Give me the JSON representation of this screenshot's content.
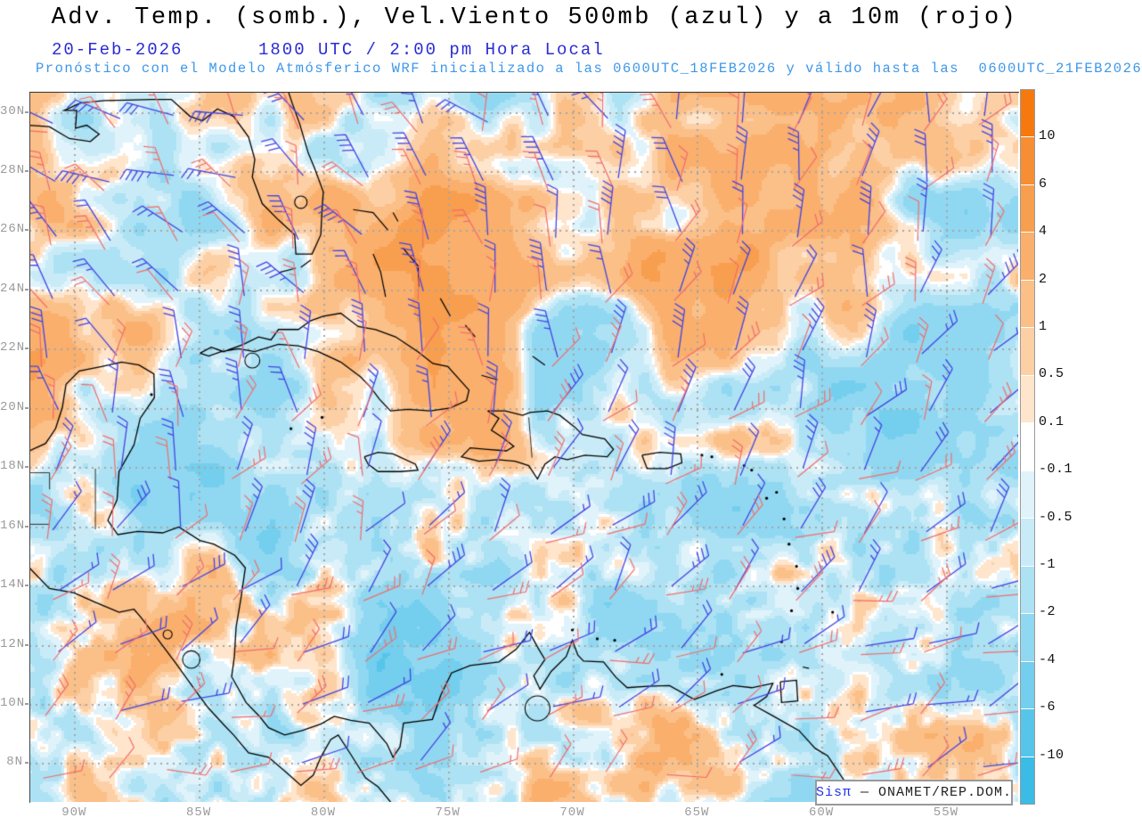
{
  "header": {
    "title": "Adv. Temp. (somb.), Vel.Viento 500mb (azul) y a 10m (rojo)",
    "date": "20-Feb-2026",
    "time": "1800 UTC / 2:00 pm Hora Local",
    "forecast": "Pronóstico con el Modelo Atmósferico WRF inicializado a las 0600UTC_18FEB2026 y válido hasta las  0600UTC_21FEB2026",
    "title_color": "#000000",
    "date_color": "#2B2BD5",
    "forecast_color": "#3E97E8"
  },
  "map": {
    "lat_labels": [
      "30N",
      "28N",
      "26N",
      "24N",
      "22N",
      "20N",
      "18N",
      "16N",
      "14N",
      "12N",
      "10N",
      "8N"
    ],
    "lat_values": [
      30,
      28,
      26,
      24,
      22,
      20,
      18,
      16,
      14,
      12,
      10,
      8
    ],
    "lon_labels": [
      "90W",
      "85W",
      "80W",
      "75W",
      "70W",
      "65W",
      "60W",
      "55W"
    ],
    "lon_values": [
      90,
      85,
      80,
      75,
      70,
      65,
      60,
      55
    ],
    "extent": {
      "lon_west": 91.8,
      "lon_east": 52.1,
      "lat_north": 30.68,
      "lat_south": 6.69
    },
    "axis_label_color": "#9B9B9B",
    "grid_dot_color": "#A6A6A6",
    "coast_color": "#000000",
    "wind_500mb_color": "#4444E4",
    "wind_10m_color": "#F26C6C"
  },
  "colorbar": {
    "labels": [
      "10",
      "6",
      "4",
      "2",
      "1",
      "0.5",
      "0.1",
      "-0.1",
      "-0.5",
      "-1",
      "-2",
      "-4",
      "-6",
      "-10"
    ],
    "colors": [
      "#F5790F",
      "#F78E33",
      "#F89E4F",
      "#FAAF6C",
      "#FBBF88",
      "#FCCFA5",
      "#FEE5CC",
      "#FFFFFF",
      "#E0F3FB",
      "#C9EBF7",
      "#ADE2F4",
      "#90D8F1",
      "#74CEED",
      "#57C5EA",
      "#3ABCE6"
    ],
    "label_color": "#111111"
  },
  "watermark": {
    "brand": "Sisπ",
    "brand_color": "#2233EE",
    "text": " — ONAMET/REP.DOM.",
    "text_color": "#222222"
  }
}
